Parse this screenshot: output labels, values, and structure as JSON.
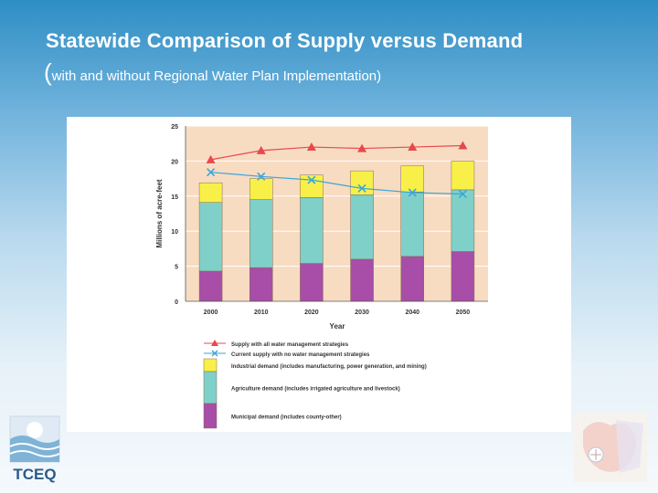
{
  "slide": {
    "title": "Statewide Comparison of Supply versus Demand",
    "subtitle_paren": "(",
    "subtitle_text": "with and without Regional Water Plan Implementation)"
  },
  "logo": {
    "text": "TCEQ",
    "icon": "tceq-logo-icon"
  },
  "right_logo": {
    "icon": "texas-seal-icon"
  },
  "colors": {
    "plot_bg": "#f7dcc2",
    "municipal": "#a84ea8",
    "agriculture": "#7fd0c8",
    "industrial": "#f8f048",
    "supply_all": "#e8484c",
    "supply_none": "#3aa6d8"
  },
  "chart_data": {
    "type": "bar",
    "stacked": true,
    "categories": [
      "2000",
      "2010",
      "2020",
      "2030",
      "2040",
      "2050"
    ],
    "xlabel": "Year",
    "ylabel": "Millions of acre-feet",
    "ylim": [
      0,
      25
    ],
    "yticks": [
      0,
      5,
      10,
      15,
      20,
      25
    ],
    "series": [
      {
        "name": "Municipal demand (includes county-other)",
        "kind": "bar",
        "values": [
          4.3,
          4.8,
          5.4,
          6.0,
          6.4,
          7.1
        ]
      },
      {
        "name": "Agriculture demand (includes irrigated agriculture and livestock)",
        "kind": "bar",
        "values": [
          9.8,
          9.7,
          9.4,
          9.2,
          9.2,
          8.8
        ]
      },
      {
        "name": "Industrial demand (includes manufacturing, power generation, and mining)",
        "kind": "bar",
        "values": [
          2.8,
          3.0,
          3.2,
          3.4,
          3.7,
          4.1
        ]
      },
      {
        "name": "Supply with all water management strategies",
        "kind": "line",
        "marker": "triangle",
        "values": [
          20.2,
          21.5,
          22.0,
          21.8,
          22.0,
          22.2
        ]
      },
      {
        "name": "Current supply with no water management strategies",
        "kind": "line",
        "marker": "x",
        "values": [
          18.4,
          17.8,
          17.3,
          16.1,
          15.5,
          15.3
        ]
      }
    ]
  }
}
